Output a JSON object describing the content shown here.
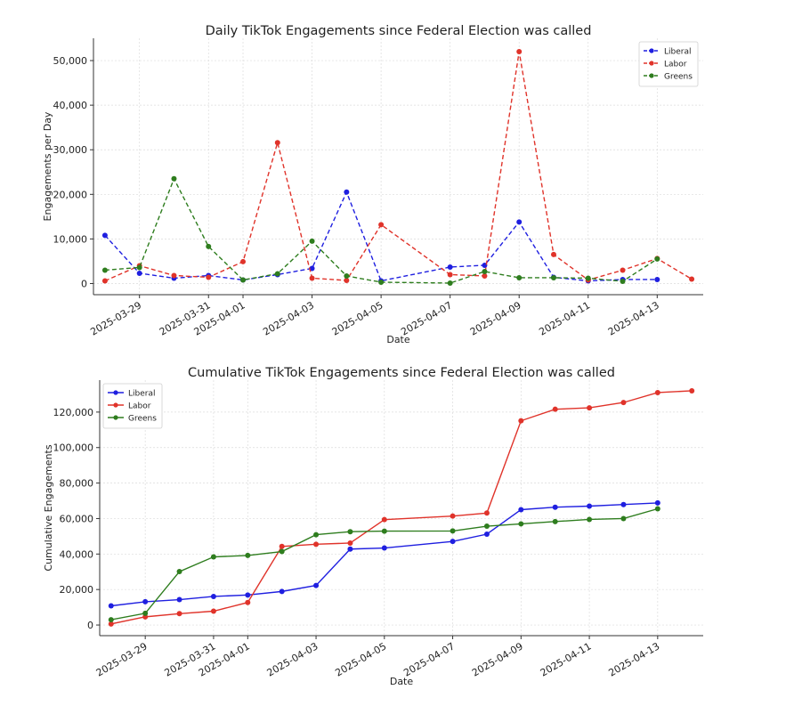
{
  "chart_data": [
    {
      "type": "line",
      "title": "Daily TikTok Engagements since Federal Election was called",
      "xlabel": "Date",
      "ylabel": "Engagements per Day",
      "ylim": [
        -2500,
        55000
      ],
      "yticks": [
        0,
        10000,
        20000,
        30000,
        40000,
        50000
      ],
      "ytick_labels": [
        "0",
        "10,000",
        "20,000",
        "30,000",
        "40,000",
        "50,000"
      ],
      "xticks": [
        "2025-03-29",
        "2025-03-31",
        "2025-04-01",
        "2025-04-03",
        "2025-04-05",
        "2025-04-07",
        "2025-04-09",
        "2025-04-11",
        "2025-04-13"
      ],
      "xlim": [
        "2025-03-27 16:00",
        "2025-04-14 08:00"
      ],
      "grid": true,
      "line_style": "dashed",
      "legend_position": "top-right",
      "series": [
        {
          "name": "Liberal",
          "color": "#1f1fe0",
          "x": [
            "2025-03-28",
            "2025-03-29",
            "2025-03-30",
            "2025-03-31",
            "2025-04-01",
            "2025-04-02",
            "2025-04-03",
            "2025-04-04",
            "2025-04-05",
            "2025-04-07",
            "2025-04-08",
            "2025-04-09",
            "2025-04-10",
            "2025-04-11",
            "2025-04-12",
            "2025-04-13"
          ],
          "values": [
            10800,
            2300,
            1200,
            1800,
            800,
            2000,
            3400,
            20500,
            600,
            3700,
            4100,
            13800,
            1400,
            600,
            900,
            900
          ]
        },
        {
          "name": "Labor",
          "color": "#e0332a",
          "x": [
            "2025-03-28",
            "2025-03-29",
            "2025-03-30",
            "2025-03-31",
            "2025-04-01",
            "2025-04-02",
            "2025-04-03",
            "2025-04-04",
            "2025-04-05",
            "2025-04-07",
            "2025-04-08",
            "2025-04-09",
            "2025-04-10",
            "2025-04-11",
            "2025-04-12",
            "2025-04-13",
            "2025-04-14"
          ],
          "values": [
            600,
            4000,
            1800,
            1400,
            4900,
            31600,
            1200,
            700,
            13200,
            2000,
            1700,
            52000,
            6500,
            800,
            3000,
            5600,
            1000
          ]
        },
        {
          "name": "Greens",
          "color": "#2e7d1e",
          "x": [
            "2025-03-28",
            "2025-03-29",
            "2025-03-30",
            "2025-03-31",
            "2025-04-01",
            "2025-04-02",
            "2025-04-03",
            "2025-04-04",
            "2025-04-05",
            "2025-04-07",
            "2025-04-08",
            "2025-04-09",
            "2025-04-10",
            "2025-04-11",
            "2025-04-12",
            "2025-04-13"
          ],
          "values": [
            3000,
            3600,
            23500,
            8300,
            800,
            2200,
            9500,
            1700,
            300,
            100,
            2700,
            1300,
            1300,
            1200,
            500,
            5500
          ]
        }
      ]
    },
    {
      "type": "line",
      "title": "Cumulative TikTok Engagements since Federal Election was called",
      "xlabel": "Date",
      "ylabel": "Cumulative Engagements",
      "ylim": [
        -6000,
        138000
      ],
      "yticks": [
        0,
        20000,
        40000,
        60000,
        80000,
        100000,
        120000
      ],
      "ytick_labels": [
        "0",
        "20,000",
        "40,000",
        "60,000",
        "80,000",
        "100,000",
        "120,000"
      ],
      "xticks": [
        "2025-03-29",
        "2025-03-31",
        "2025-04-01",
        "2025-04-03",
        "2025-04-05",
        "2025-04-07",
        "2025-04-09",
        "2025-04-11",
        "2025-04-13"
      ],
      "xlim": [
        "2025-03-27 16:00",
        "2025-04-14 08:00"
      ],
      "grid": true,
      "line_style": "solid",
      "legend_position": "top-left",
      "series": [
        {
          "name": "Liberal",
          "color": "#1f1fe0",
          "x": [
            "2025-03-28",
            "2025-03-29",
            "2025-03-30",
            "2025-03-31",
            "2025-04-01",
            "2025-04-02",
            "2025-04-03",
            "2025-04-04",
            "2025-04-05",
            "2025-04-07",
            "2025-04-08",
            "2025-04-09",
            "2025-04-10",
            "2025-04-11",
            "2025-04-12",
            "2025-04-13"
          ],
          "values": [
            10800,
            13100,
            14300,
            16100,
            16900,
            18900,
            22300,
            42800,
            43400,
            47100,
            51200,
            65000,
            66400,
            67000,
            67900,
            68800
          ]
        },
        {
          "name": "Labor",
          "color": "#e0332a",
          "x": [
            "2025-03-28",
            "2025-03-29",
            "2025-03-30",
            "2025-03-31",
            "2025-04-01",
            "2025-04-02",
            "2025-04-03",
            "2025-04-04",
            "2025-04-05",
            "2025-04-07",
            "2025-04-08",
            "2025-04-09",
            "2025-04-10",
            "2025-04-11",
            "2025-04-12",
            "2025-04-13",
            "2025-04-14"
          ],
          "values": [
            600,
            4600,
            6400,
            7800,
            12700,
            44300,
            45500,
            46200,
            59400,
            61400,
            63100,
            115100,
            121600,
            122400,
            125400,
            131000,
            132000
          ]
        },
        {
          "name": "Greens",
          "color": "#2e7d1e",
          "x": [
            "2025-03-28",
            "2025-03-29",
            "2025-03-30",
            "2025-03-31",
            "2025-04-01",
            "2025-04-02",
            "2025-04-03",
            "2025-04-04",
            "2025-04-05",
            "2025-04-07",
            "2025-04-08",
            "2025-04-09",
            "2025-04-10",
            "2025-04-11",
            "2025-04-12",
            "2025-04-13"
          ],
          "values": [
            3000,
            6600,
            30100,
            38400,
            39200,
            41400,
            50900,
            52600,
            52900,
            53000,
            55700,
            57000,
            58300,
            59500,
            60000,
            65500
          ]
        }
      ]
    }
  ]
}
